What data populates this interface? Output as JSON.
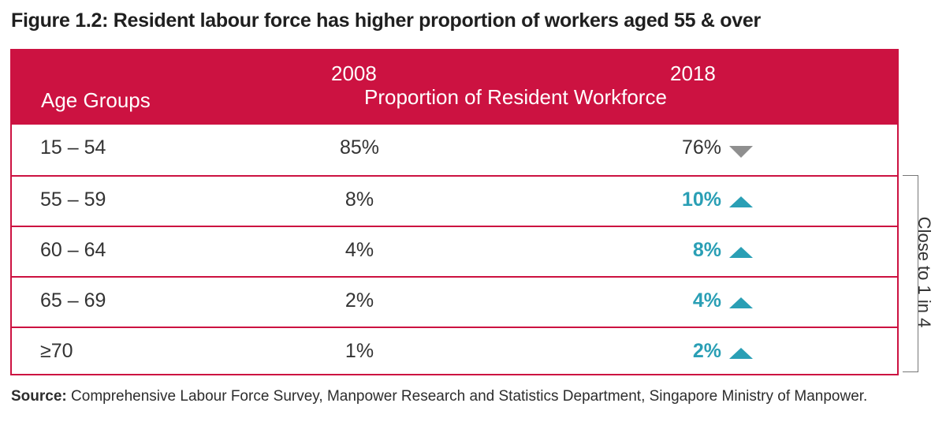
{
  "title": "Figure 1.2: Resident labour force has higher proportion of workers aged 55 & over",
  "chart_data": {
    "type": "table",
    "columns": {
      "age_groups": "Age Groups",
      "year_2008": "2008",
      "year_2018": "2018",
      "subheader": "Proportion of Resident Workforce"
    },
    "rows": [
      {
        "age": "15 – 54",
        "v2008": "85%",
        "v2018": "76%",
        "trend": "down"
      },
      {
        "age": "55 – 59",
        "v2008": "8%",
        "v2018": "10%",
        "trend": "up"
      },
      {
        "age": "60 – 64",
        "v2008": "4%",
        "v2018": "8%",
        "trend": "up"
      },
      {
        "age": "65 – 69",
        "v2008": "2%",
        "v2018": "4%",
        "trend": "up"
      },
      {
        "age": "≥70",
        "v2008": "1%",
        "v2018": "2%",
        "trend": "up"
      }
    ],
    "annotation": "Close to 1 in 4"
  },
  "source": {
    "label": "Source:",
    "text": "Comprehensive Labour Force Survey, Manpower Research and Statistics Department, Singapore Ministry of Manpower."
  },
  "colors": {
    "header": "#cc1241",
    "up": "#2a9fb5",
    "down": "#8f8f8f"
  }
}
